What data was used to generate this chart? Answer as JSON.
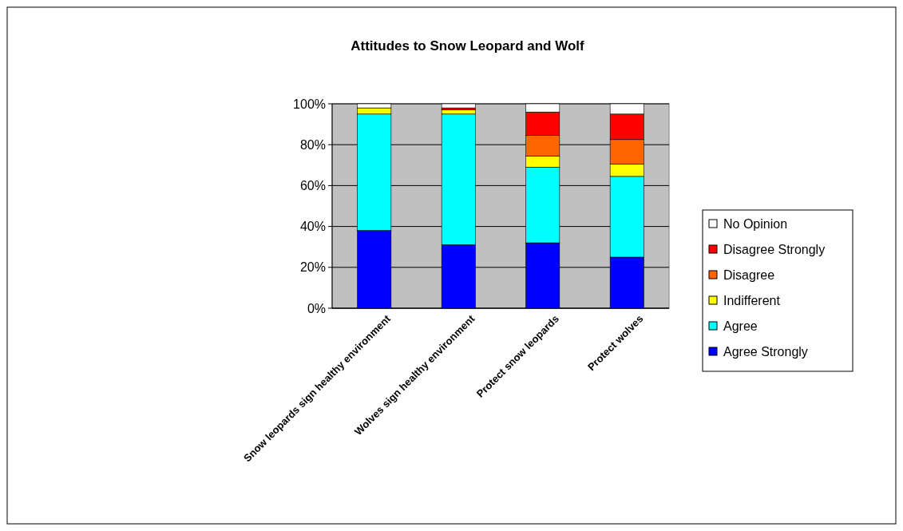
{
  "chart_data": {
    "type": "bar",
    "stacked": true,
    "title": "Attitudes to Snow Leopard and Wolf",
    "categories": [
      "Snow leopards sign healthy environment",
      "Wolves sign healthy environment",
      "Protect snow leopards",
      "Protect wolves"
    ],
    "series": [
      {
        "name": "Agree Strongly",
        "color": "#0000ff",
        "values": [
          38,
          31,
          32,
          25
        ]
      },
      {
        "name": "Agree",
        "color": "#00ffff",
        "values": [
          57,
          64,
          37,
          39.5
        ]
      },
      {
        "name": "Indifferent",
        "color": "#ffff00",
        "values": [
          3,
          2,
          5.5,
          6
        ]
      },
      {
        "name": "Disagree",
        "color": "#ff6600",
        "values": [
          0,
          0,
          10,
          12
        ]
      },
      {
        "name": "Disagree Strongly",
        "color": "#ff0000",
        "values": [
          0,
          1,
          11.5,
          12.5
        ]
      },
      {
        "name": "No Opinion",
        "color": "#ffffff",
        "values": [
          2,
          2,
          4,
          5
        ]
      }
    ],
    "ylim": [
      0,
      100
    ],
    "yticks": [
      {
        "value": 0,
        "label": "0%"
      },
      {
        "value": 20,
        "label": "20%"
      },
      {
        "value": 40,
        "label": "40%"
      },
      {
        "value": 60,
        "label": "60%"
      },
      {
        "value": 80,
        "label": "80%"
      },
      {
        "value": 100,
        "label": "100%"
      }
    ],
    "grid": "y",
    "legend": "right"
  }
}
